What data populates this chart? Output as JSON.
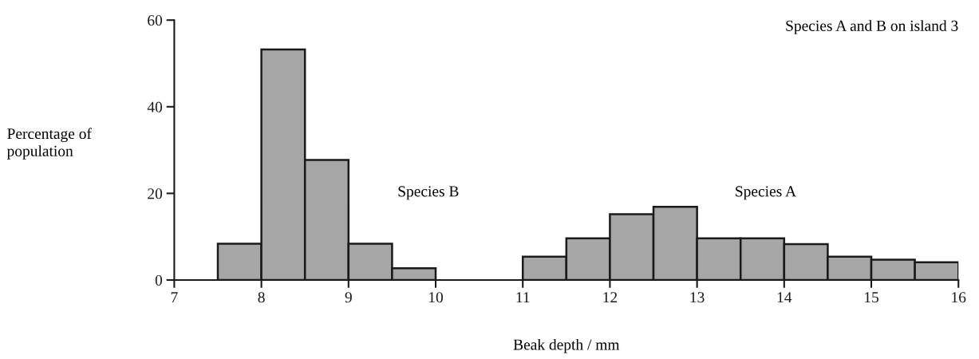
{
  "chart_data": {
    "type": "histogram",
    "title": "Species A and B on island 3",
    "xlabel": "Beak depth / mm",
    "ylabel": "Percentage of\npopulation",
    "bins": [
      7.5,
      8,
      8.5,
      9,
      9.5,
      10,
      10.5,
      11,
      11.5,
      12,
      12.5,
      13,
      13.5,
      14,
      14.5,
      15,
      15.5,
      16
    ],
    "values": [
      8.4,
      53.2,
      27.7,
      8.4,
      2.7,
      0,
      0,
      5.4,
      9.6,
      15.2,
      16.9,
      9.6,
      9.6,
      8.3,
      5.4,
      4.7,
      4.1
    ],
    "color": "#a6a6a6",
    "xlim": [
      7,
      16
    ],
    "xticks": [
      7,
      8,
      9,
      10,
      11,
      12,
      13,
      14,
      15,
      16
    ],
    "ylim": [
      0,
      60
    ],
    "yticks": [
      0,
      20,
      40,
      60
    ],
    "annotations": [
      "Species B",
      "Species A"
    ],
    "grid": false,
    "legend": false
  }
}
